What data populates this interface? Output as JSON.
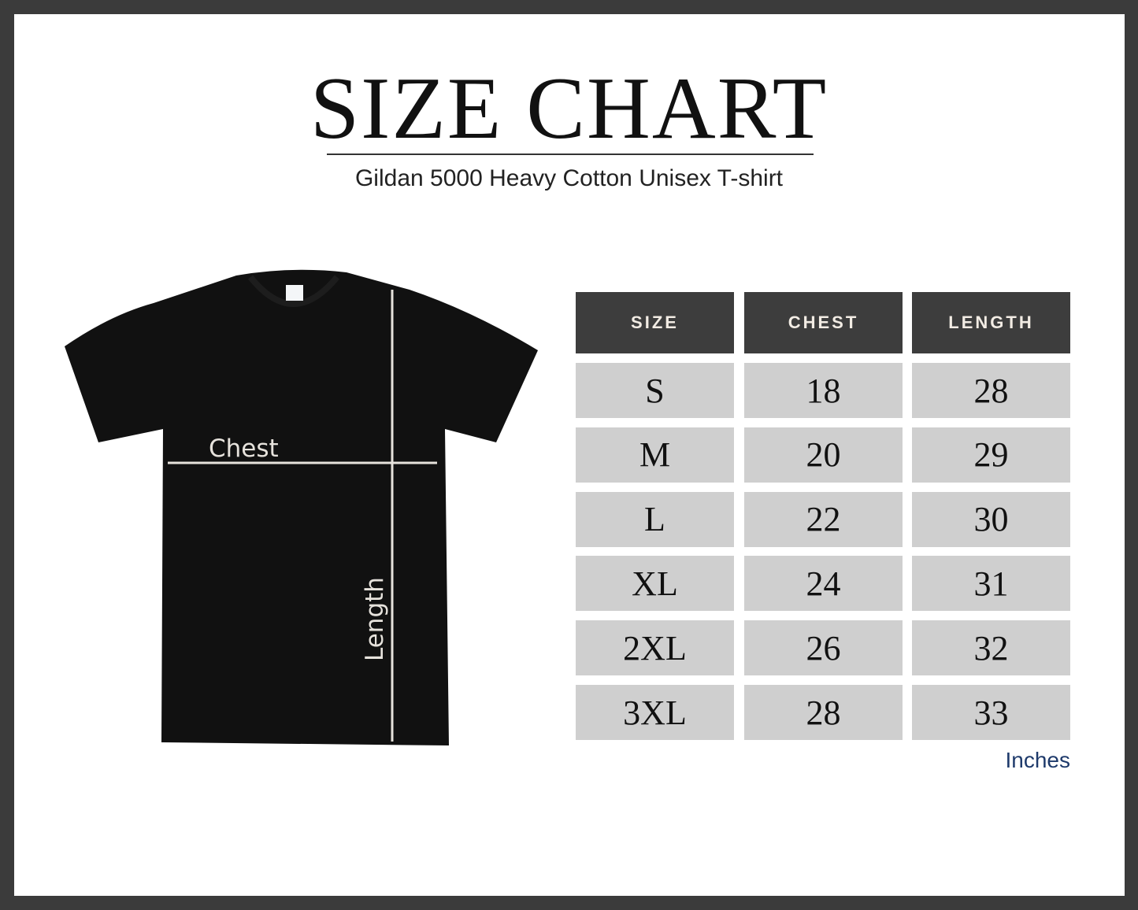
{
  "title": "SIZE CHART",
  "subtitle": "Gildan 5000 Heavy Cotton Unisex T-shirt",
  "diagram": {
    "chest_label": "Chest",
    "length_label": "Length"
  },
  "table": {
    "headers": [
      "SIZE",
      "CHEST",
      "LENGTH"
    ],
    "rows": [
      [
        "S",
        "18",
        "28"
      ],
      [
        "M",
        "20",
        "29"
      ],
      [
        "L",
        "22",
        "30"
      ],
      [
        "XL",
        "24",
        "31"
      ],
      [
        "2XL",
        "26",
        "32"
      ],
      [
        "3XL",
        "28",
        "33"
      ]
    ],
    "unit": "Inches"
  },
  "colors": {
    "frame": "#3b3b3b",
    "header_bg": "#3d3d3d",
    "cell_bg": "#cfcfcf",
    "unit_text": "#1e3a6b"
  }
}
